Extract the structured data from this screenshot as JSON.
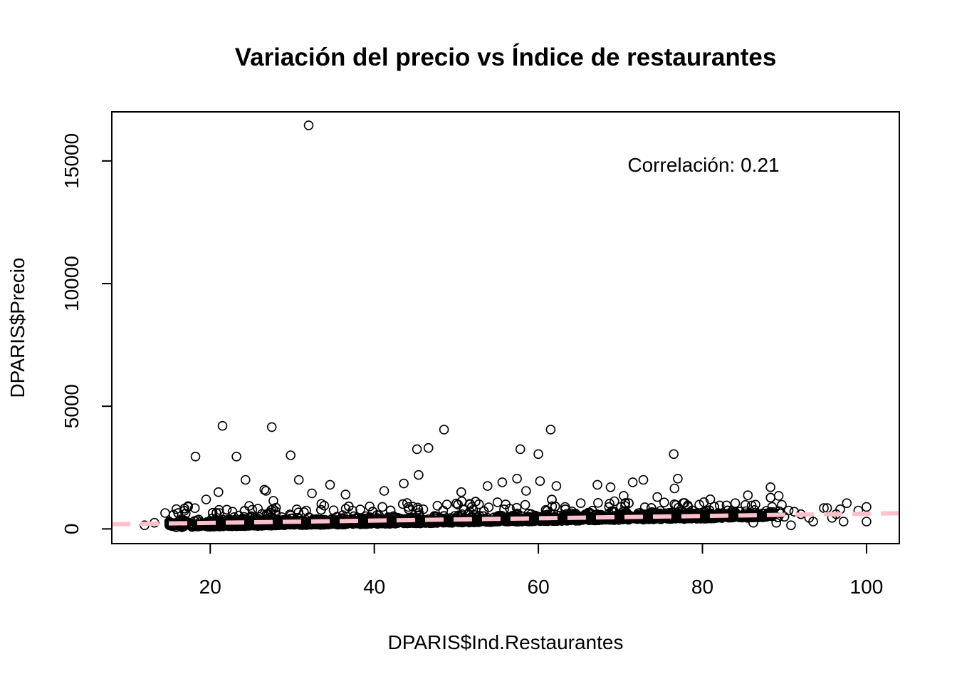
{
  "chart_data": {
    "type": "scatter",
    "title": "Variación del precio vs Índice de restaurantes",
    "xlabel": "DPARIS$Ind.Restaurantes",
    "ylabel": "DPARIS$Precio",
    "xlim": [
      8,
      104
    ],
    "ylim": [
      -600,
      17000
    ],
    "xticks": [
      20,
      40,
      60,
      80,
      100
    ],
    "yticks": [
      0,
      5000,
      10000,
      15000
    ],
    "annotation": "Correlación: 0.21",
    "grid": false,
    "legend": "none",
    "marker": "open-circle",
    "regression_line": {
      "color": "#ffc0cb",
      "style": "dashed",
      "x": [
        8,
        104
      ],
      "y": [
        190,
        640
      ]
    },
    "outliers": [
      [
        32.0,
        16450
      ],
      [
        21.5,
        4200
      ],
      [
        27.5,
        4150
      ],
      [
        48.5,
        4050
      ],
      [
        61.5,
        4050
      ],
      [
        18.2,
        2950
      ],
      [
        23.2,
        2950
      ],
      [
        29.8,
        3000
      ],
      [
        45.2,
        3250
      ],
      [
        46.6,
        3300
      ],
      [
        57.8,
        3250
      ],
      [
        60.0,
        3050
      ],
      [
        76.5,
        3050
      ],
      [
        24.3,
        2000
      ],
      [
        30.8,
        2000
      ],
      [
        45.4,
        2200
      ],
      [
        57.4,
        2050
      ],
      [
        60.2,
        1950
      ],
      [
        72.8,
        2000
      ],
      [
        77.0,
        2050
      ],
      [
        34.6,
        1800
      ],
      [
        43.6,
        1850
      ],
      [
        53.8,
        1750
      ],
      [
        55.6,
        1900
      ],
      [
        62.2,
        1750
      ],
      [
        67.2,
        1800
      ],
      [
        68.8,
        1700
      ],
      [
        71.5,
        1900
      ],
      [
        76.6,
        1650
      ],
      [
        88.3,
        1700
      ],
      [
        26.6,
        1600
      ],
      [
        21.0,
        1500
      ],
      [
        32.4,
        1450
      ],
      [
        50.6,
        1500
      ],
      [
        58.5,
        1550
      ],
      [
        70.4,
        1350
      ],
      [
        74.5,
        1300
      ],
      [
        89.3,
        1350
      ],
      [
        19.5,
        1200
      ],
      [
        36.5,
        1400
      ],
      [
        41.2,
        1550
      ],
      [
        26.8,
        1550
      ],
      [
        84.0,
        1050
      ],
      [
        86.0,
        950
      ],
      [
        88.5,
        900
      ],
      [
        90.5,
        750
      ],
      [
        91.2,
        700
      ],
      [
        92.0,
        600
      ],
      [
        93.0,
        450
      ],
      [
        94.8,
        850
      ],
      [
        95.2,
        850
      ],
      [
        96.3,
        600
      ],
      [
        96.8,
        800
      ],
      [
        97.6,
        1050
      ],
      [
        99.0,
        750
      ],
      [
        100.0,
        900
      ],
      [
        100.0,
        300
      ],
      [
        95.8,
        450
      ],
      [
        97.2,
        300
      ],
      [
        93.5,
        300
      ],
      [
        90.8,
        150
      ],
      [
        89.0,
        250
      ],
      [
        87.0,
        550
      ],
      [
        86.2,
        250
      ],
      [
        12.0,
        150
      ],
      [
        13.2,
        250
      ],
      [
        14.5,
        650
      ],
      [
        15.0,
        300
      ],
      [
        16.5,
        350
      ],
      [
        17.3,
        900
      ]
    ]
  }
}
